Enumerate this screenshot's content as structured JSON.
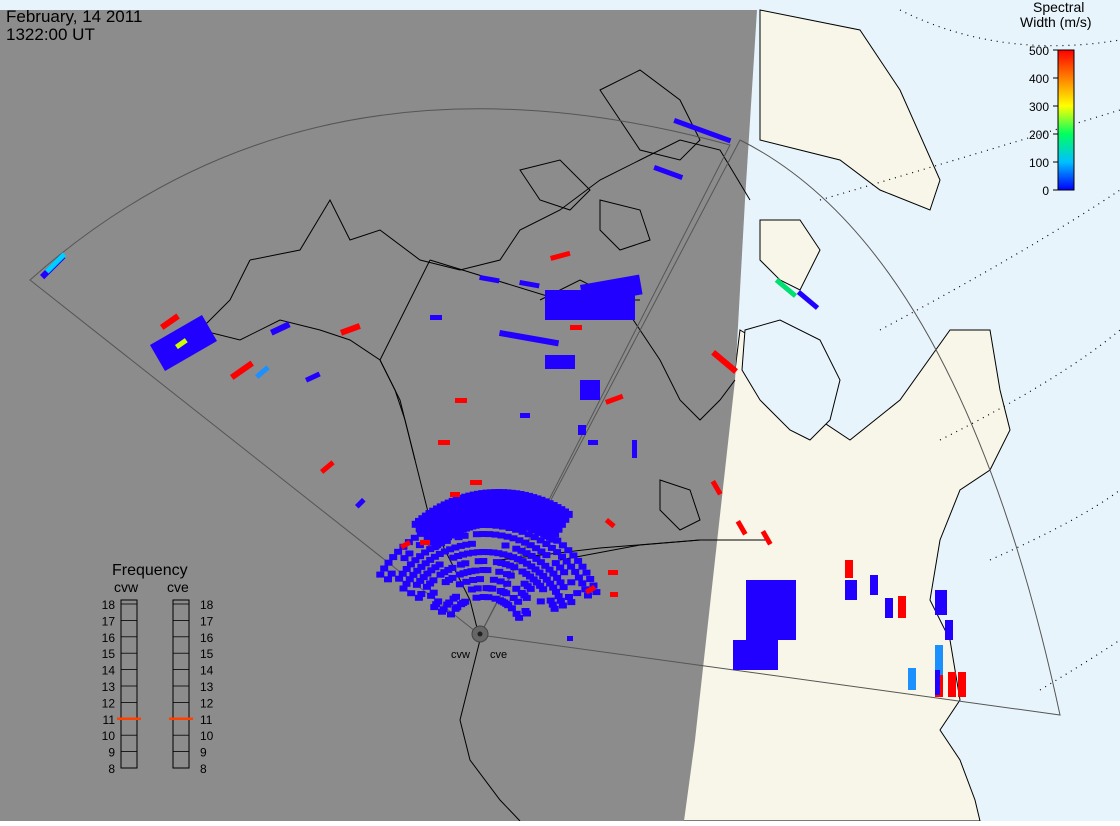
{
  "header": {
    "date": "February, 14 2011",
    "time": "1322:00 UT"
  },
  "colorbar": {
    "title_line1": "Spectral",
    "title_line2": "Width (m/s)",
    "ticks": [
      "500",
      "400",
      "300",
      "200",
      "100",
      "0"
    ],
    "range": [
      0,
      500
    ],
    "colors": [
      "#0000ff",
      "#00c0ff",
      "#00ff60",
      "#ffff00",
      "#ff8000",
      "#ff0000"
    ]
  },
  "frequency_panel": {
    "title": "Frequency",
    "radars": [
      {
        "name": "cvw",
        "value": 11.0
      },
      {
        "name": "cve",
        "value": 11.0
      }
    ],
    "ticks": [
      "18",
      "17",
      "16",
      "15",
      "14",
      "13",
      "12",
      "11",
      "10",
      "9",
      "8"
    ],
    "range": [
      8,
      18
    ],
    "marker_color": "#ff4000"
  },
  "radar_labels": [
    "cvw",
    "cve"
  ],
  "map": {
    "night_color": "#8c8c8c",
    "land_color": "#f8f6e8",
    "ocean_color": "#e8f4fc",
    "scatter_color": "#2200ff",
    "high_width_color": "#ff0000"
  }
}
